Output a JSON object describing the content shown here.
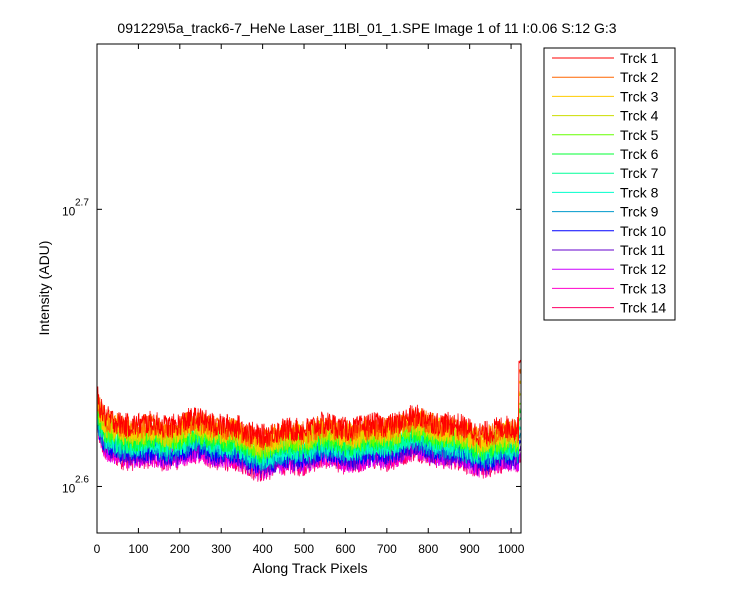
{
  "chart_data": {
    "type": "line",
    "title": "091229\\5a_track6-7_HeNe Laser_11Bl_01_1.SPE  Image 1 of 11  I:0.06  S:12  G:3",
    "xlabel": "Along Track Pixels",
    "ylabel": "Intensity (ADU)",
    "xlim": [
      0,
      1024
    ],
    "ylim": [
      383,
      575
    ],
    "y_scale": "log",
    "grid": false,
    "legend_position": "outside-top-right",
    "x_ticks": [
      "0",
      "100",
      "200",
      "300",
      "400",
      "500",
      "600",
      "700",
      "800",
      "900",
      "1000"
    ],
    "y_ticks": [
      {
        "base": "10",
        "exp": "2.6",
        "value": 398.1
      },
      {
        "base": "10",
        "exp": "2.7",
        "value": 501.2
      }
    ],
    "n_points": 1024,
    "series": [
      {
        "name": "Trck 1",
        "color": "#ff0000",
        "start": 430,
        "floor": 418.5,
        "end": 442
      },
      {
        "name": "Trck 2",
        "color": "#ff6600",
        "start": 429,
        "floor": 417.5,
        "end": 438
      },
      {
        "name": "Trck 3",
        "color": "#ffcc00",
        "start": 428,
        "floor": 416.5,
        "end": 434
      },
      {
        "name": "Trck 4",
        "color": "#ccdd00",
        "start": 427,
        "floor": 415.5,
        "end": 430
      },
      {
        "name": "Trck 5",
        "color": "#66ff00",
        "start": 426,
        "floor": 414.5,
        "end": 427
      },
      {
        "name": "Trck 6",
        "color": "#00ff33",
        "start": 425,
        "floor": 413.5,
        "end": 424
      },
      {
        "name": "Trck 7",
        "color": "#00ff99",
        "start": 424,
        "floor": 412.5,
        "end": 421
      },
      {
        "name": "Trck 8",
        "color": "#00ffcc",
        "start": 423,
        "floor": 411.5,
        "end": 418
      },
      {
        "name": "Trck 9",
        "color": "#0099cc",
        "start": 422,
        "floor": 410.5,
        "end": 415
      },
      {
        "name": "Trck 10",
        "color": "#0000ff",
        "start": 422,
        "floor": 409.5,
        "end": 413
      },
      {
        "name": "Trck 11",
        "color": "#6600cc",
        "start": 421,
        "floor": 408.5,
        "end": 411
      },
      {
        "name": "Trck 12",
        "color": "#cc00ff",
        "start": 421,
        "floor": 408.0,
        "end": 409
      },
      {
        "name": "Trck 13",
        "color": "#ff00cc",
        "start": 420,
        "floor": 407.5,
        "end": 408
      },
      {
        "name": "Trck 14",
        "color": "#ff0066",
        "start": 420,
        "floor": 407.0,
        "end": 407
      }
    ]
  }
}
